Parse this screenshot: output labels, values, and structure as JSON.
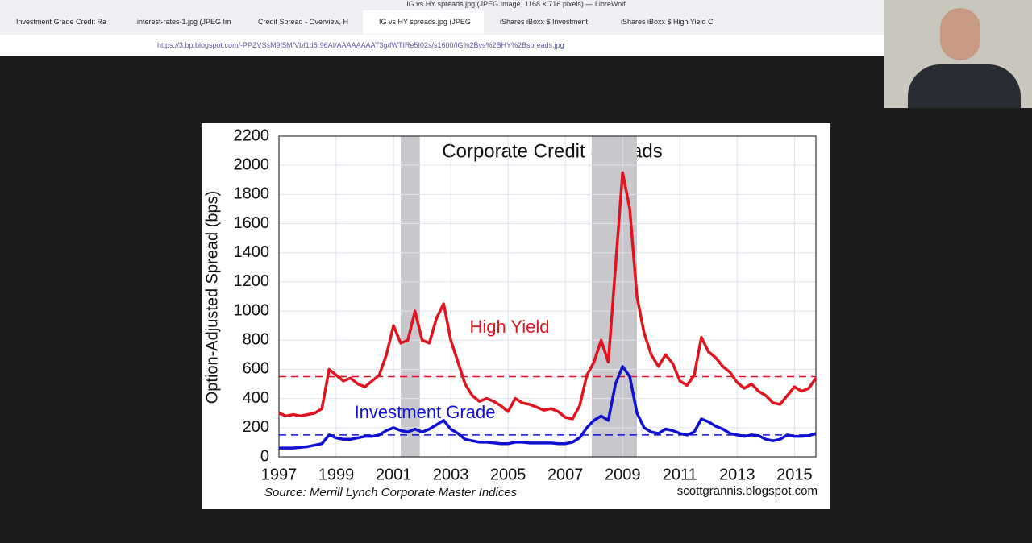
{
  "browser": {
    "window_title": "IG vs HY spreads.jpg (JPEG Image, 1168 × 716 pixels) — LibreWolf",
    "tabs": [
      "Investment Grade Credit Ra",
      "interest-rates-1.jpg (JPEG Im",
      "Credit Spread - Overview, H",
      "IG vs HY spreads.jpg (JPEG",
      "iShares iBoxx $ Investment",
      "iShares iBoxx $ High Yield C"
    ],
    "url": "https://3.bp.blogspot.com/-PPZVSsM9f5M/Vbf1d5r96AI/AAAAAAAAT3g/fWTIRe5I02s/s1600/IG%2Bvs%2BHY%2Bspreads.jpg"
  },
  "chart_data": {
    "type": "line",
    "title": "Corporate Credit Spreads",
    "y_label": "Option-Adjusted Spread (bps)",
    "source": "Source: Merrill Lynch Corporate Master Indices",
    "credit": "scottgrannis.blogspot.com",
    "x": [
      1997,
      1997.25,
      1997.5,
      1997.75,
      1998,
      1998.25,
      1998.5,
      1998.75,
      1999,
      1999.25,
      1999.5,
      1999.75,
      2000,
      2000.25,
      2000.5,
      2000.75,
      2001,
      2001.25,
      2001.5,
      2001.75,
      2002,
      2002.25,
      2002.5,
      2002.75,
      2003,
      2003.25,
      2003.5,
      2003.75,
      2004,
      2004.25,
      2004.5,
      2004.75,
      2005,
      2005.25,
      2005.5,
      2005.75,
      2006,
      2006.25,
      2006.5,
      2006.75,
      2007,
      2007.25,
      2007.5,
      2007.75,
      2008,
      2008.25,
      2008.5,
      2008.75,
      2009,
      2009.25,
      2009.5,
      2009.75,
      2010,
      2010.25,
      2010.5,
      2010.75,
      2011,
      2011.25,
      2011.5,
      2011.75,
      2012,
      2012.25,
      2012.5,
      2012.75,
      2013,
      2013.25,
      2013.5,
      2013.75,
      2014,
      2014.25,
      2014.5,
      2014.75,
      2015,
      2015.25,
      2015.5,
      2015.75
    ],
    "series": [
      {
        "name": "High Yield",
        "color": "#e0141e",
        "values": [
          300,
          280,
          290,
          280,
          290,
          300,
          330,
          600,
          560,
          520,
          540,
          500,
          480,
          520,
          560,
          700,
          900,
          780,
          800,
          1000,
          800,
          780,
          950,
          1050,
          800,
          650,
          500,
          420,
          380,
          400,
          380,
          350,
          310,
          400,
          370,
          360,
          340,
          320,
          330,
          310,
          270,
          260,
          350,
          560,
          650,
          800,
          650,
          1300,
          1950,
          1700,
          1100,
          850,
          700,
          620,
          700,
          640,
          520,
          490,
          560,
          820,
          720,
          680,
          620,
          580,
          510,
          470,
          500,
          450,
          420,
          370,
          360,
          420,
          480,
          450,
          470,
          540
        ]
      },
      {
        "name": "Investment Grade",
        "color": "#1010d0",
        "values": [
          60,
          60,
          60,
          65,
          70,
          80,
          90,
          150,
          130,
          120,
          120,
          130,
          140,
          140,
          150,
          180,
          200,
          180,
          170,
          190,
          170,
          190,
          220,
          250,
          190,
          160,
          120,
          110,
          100,
          100,
          95,
          90,
          90,
          100,
          100,
          95,
          95,
          95,
          95,
          90,
          90,
          100,
          130,
          200,
          250,
          280,
          250,
          500,
          620,
          550,
          300,
          200,
          170,
          160,
          190,
          180,
          160,
          150,
          170,
          260,
          240,
          210,
          190,
          160,
          150,
          140,
          150,
          145,
          120,
          110,
          120,
          150,
          140,
          140,
          145,
          160
        ]
      }
    ],
    "reference_lines": [
      {
        "value": 550,
        "color": "#e0141e"
      },
      {
        "value": 150,
        "color": "#1010d0"
      }
    ],
    "shaded_ranges": [
      [
        2001.25,
        2001.92
      ],
      [
        2007.92,
        2009.5
      ]
    ],
    "xlim": [
      1997,
      2015.75
    ],
    "xticks": [
      1997,
      1999,
      2001,
      2003,
      2005,
      2007,
      2009,
      2011,
      2013,
      2015
    ],
    "ylim": [
      0,
      2200
    ],
    "yticks": [
      0,
      200,
      400,
      600,
      800,
      1000,
      1200,
      1400,
      1600,
      1800,
      2000,
      2200
    ],
    "grid": true
  }
}
